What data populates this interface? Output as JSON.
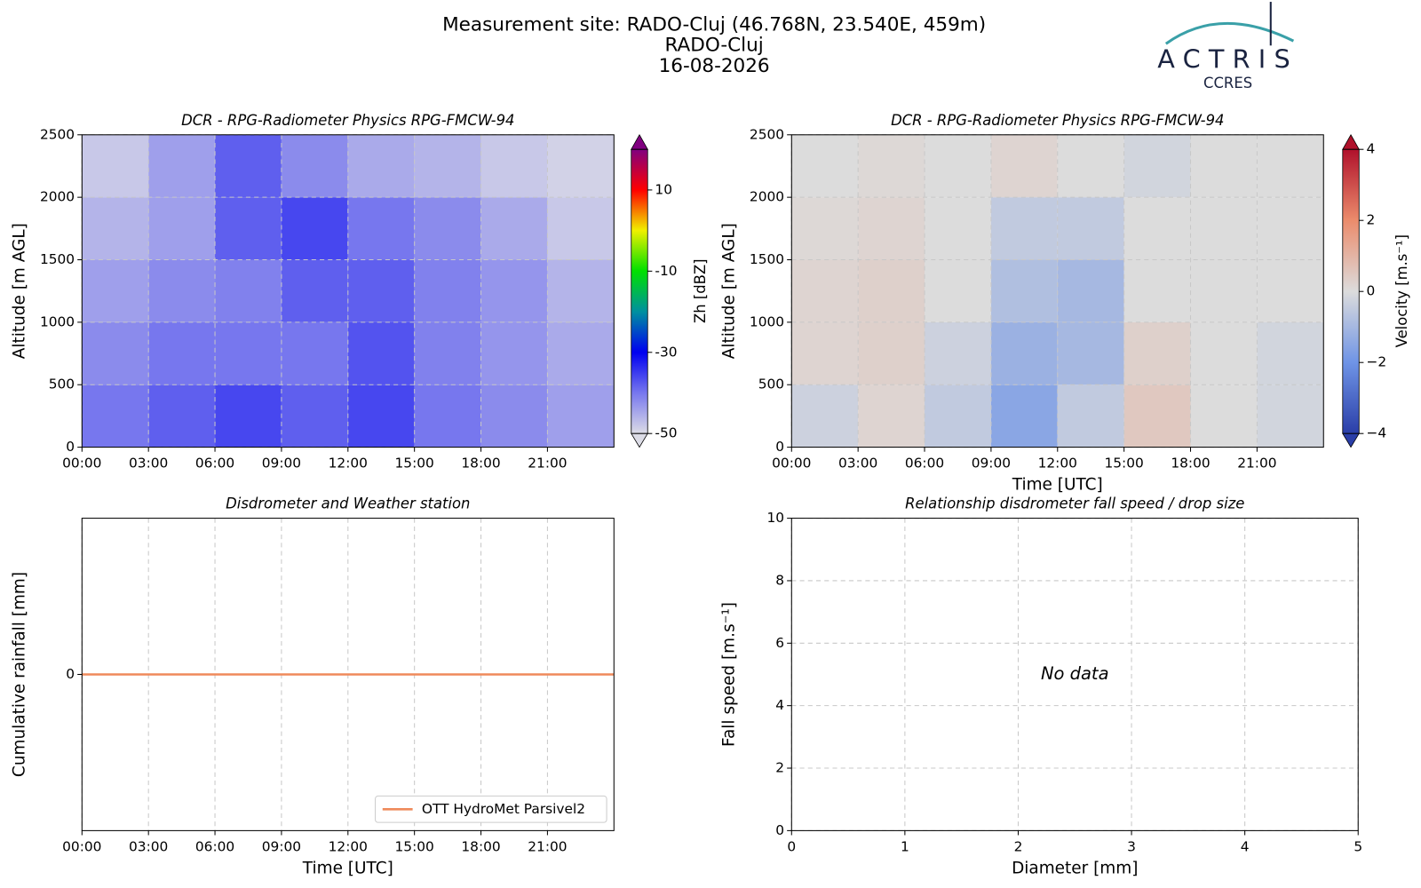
{
  "header": {
    "title": [
      "Measurement site: RADO-Cluj (46.768N, 23.540E, 459m)",
      "RADO-Cluj",
      "16-08-2026"
    ],
    "logo": {
      "name": "ACTRIS",
      "sub": "CCRES"
    }
  },
  "chart_data": [
    {
      "type": "heatmap",
      "title": "DCR - RPG-Radiometer Physics RPG-FMCW-94",
      "ylabel": "Altitude [m AGL]",
      "xlim": [
        0,
        24
      ],
      "ylim": [
        0,
        2500
      ],
      "xticks": [
        {
          "value": 0,
          "label": "00:00"
        },
        {
          "value": 3,
          "label": "03:00"
        },
        {
          "value": 6,
          "label": "06:00"
        },
        {
          "value": 9,
          "label": "09:00"
        },
        {
          "value": 12,
          "label": "12:00"
        },
        {
          "value": 15,
          "label": "15:00"
        },
        {
          "value": 18,
          "label": "18:00"
        },
        {
          "value": 21,
          "label": "21:00"
        }
      ],
      "yticks": [
        0,
        500,
        1000,
        1500,
        2000,
        2500
      ],
      "grid": true,
      "x_edges": [
        0,
        3,
        6,
        9,
        12,
        15,
        18,
        21,
        24
      ],
      "y_edges": [
        0,
        500,
        1000,
        1500,
        2000,
        2500
      ],
      "z": [
        [
          -40,
          -38,
          -36,
          -38,
          -36,
          -40,
          -42,
          -44
        ],
        [
          -42,
          -40,
          -40,
          -40,
          -37,
          -41,
          -43,
          -45
        ],
        [
          -44,
          -42,
          -41,
          -38,
          -38,
          -41,
          -43,
          -46
        ],
        [
          -46,
          -44,
          -38,
          -36,
          -40,
          -42,
          -45,
          -48
        ],
        [
          -48,
          -44,
          -38,
          -42,
          -45,
          -46,
          -48,
          -49
        ]
      ],
      "colorbar": {
        "label": "Zh [dBZ]",
        "lim": [
          -50,
          20
        ],
        "ticks": [
          -50,
          -30,
          -10,
          10
        ],
        "colors": [
          "#dcdce6",
          "#7777ee",
          "#0000f0",
          "#0090a0",
          "#00e000",
          "#f0f000",
          "#ff0000",
          "#800080"
        ]
      }
    },
    {
      "type": "heatmap",
      "title": "DCR - RPG-Radiometer Physics RPG-FMCW-94",
      "ylabel": "Altitude [m AGL]",
      "xlabel": "Time [UTC]",
      "xlim": [
        0,
        24
      ],
      "ylim": [
        0,
        2500
      ],
      "xticks": [
        {
          "value": 0,
          "label": "00:00"
        },
        {
          "value": 3,
          "label": "03:00"
        },
        {
          "value": 6,
          "label": "06:00"
        },
        {
          "value": 9,
          "label": "09:00"
        },
        {
          "value": 12,
          "label": "12:00"
        },
        {
          "value": 15,
          "label": "15:00"
        },
        {
          "value": 18,
          "label": "18:00"
        },
        {
          "value": 21,
          "label": "21:00"
        }
      ],
      "yticks": [
        0,
        500,
        1000,
        1500,
        2000,
        2500
      ],
      "grid": true,
      "x_edges": [
        0,
        3,
        6,
        9,
        12,
        15,
        18,
        21,
        24
      ],
      "y_edges": [
        0,
        500,
        1000,
        1500,
        2000,
        2500
      ],
      "z": [
        [
          -0.3,
          0.2,
          -0.5,
          -1.5,
          -0.5,
          0.5,
          0,
          -0.2
        ],
        [
          0.2,
          0.3,
          -0.3,
          -1.2,
          -1,
          0.3,
          0,
          -0.2
        ],
        [
          0.2,
          0.3,
          0,
          -0.8,
          -1,
          0,
          0,
          0
        ],
        [
          0.1,
          0.2,
          0,
          -0.5,
          -0.5,
          0,
          0,
          0
        ],
        [
          0,
          0.1,
          0,
          0.2,
          0,
          -0.2,
          0,
          0
        ]
      ],
      "colorbar": {
        "label": "Velocity [m.s⁻¹]",
        "lim": [
          -4,
          4
        ],
        "ticks": [
          {
            "value": -4,
            "label": "−4"
          },
          {
            "value": -2,
            "label": "−2"
          },
          0,
          2,
          4
        ],
        "colors": [
          "#2a3ea8",
          "#6f94e6",
          "#dcdcdc",
          "#eb8c6c",
          "#b0112b"
        ]
      }
    },
    {
      "type": "line",
      "title": "Disdrometer and Weather station",
      "xlabel": "Time [UTC]",
      "ylabel": "Cumulative rainfall [mm]",
      "xlim": [
        0,
        24
      ],
      "ylim": [
        -1,
        1
      ],
      "xticks": [
        {
          "value": 0,
          "label": "00:00"
        },
        {
          "value": 3,
          "label": "03:00"
        },
        {
          "value": 6,
          "label": "06:00"
        },
        {
          "value": 9,
          "label": "09:00"
        },
        {
          "value": 12,
          "label": "12:00"
        },
        {
          "value": 15,
          "label": "15:00"
        },
        {
          "value": 18,
          "label": "18:00"
        },
        {
          "value": 21,
          "label": "21:00"
        }
      ],
      "yticks": [
        0
      ],
      "grid": true,
      "legend": "lower right",
      "series": [
        {
          "name": "OTT HydroMet Parsivel2",
          "color": "#ef8a5b",
          "x": [
            0,
            24
          ],
          "values": [
            0,
            0
          ]
        }
      ]
    },
    {
      "type": "scatter",
      "title": "Relationship disdrometer fall speed / drop size",
      "xlabel": "Diameter [mm]",
      "ylabel": "Fall speed [m.s⁻¹]",
      "xlim": [
        0,
        5
      ],
      "ylim": [
        0,
        10
      ],
      "xticks": [
        0,
        1,
        2,
        3,
        4,
        5
      ],
      "yticks": [
        0,
        2,
        4,
        6,
        8,
        10
      ],
      "grid": true,
      "x": [],
      "values": [],
      "annotation": "No data"
    }
  ]
}
